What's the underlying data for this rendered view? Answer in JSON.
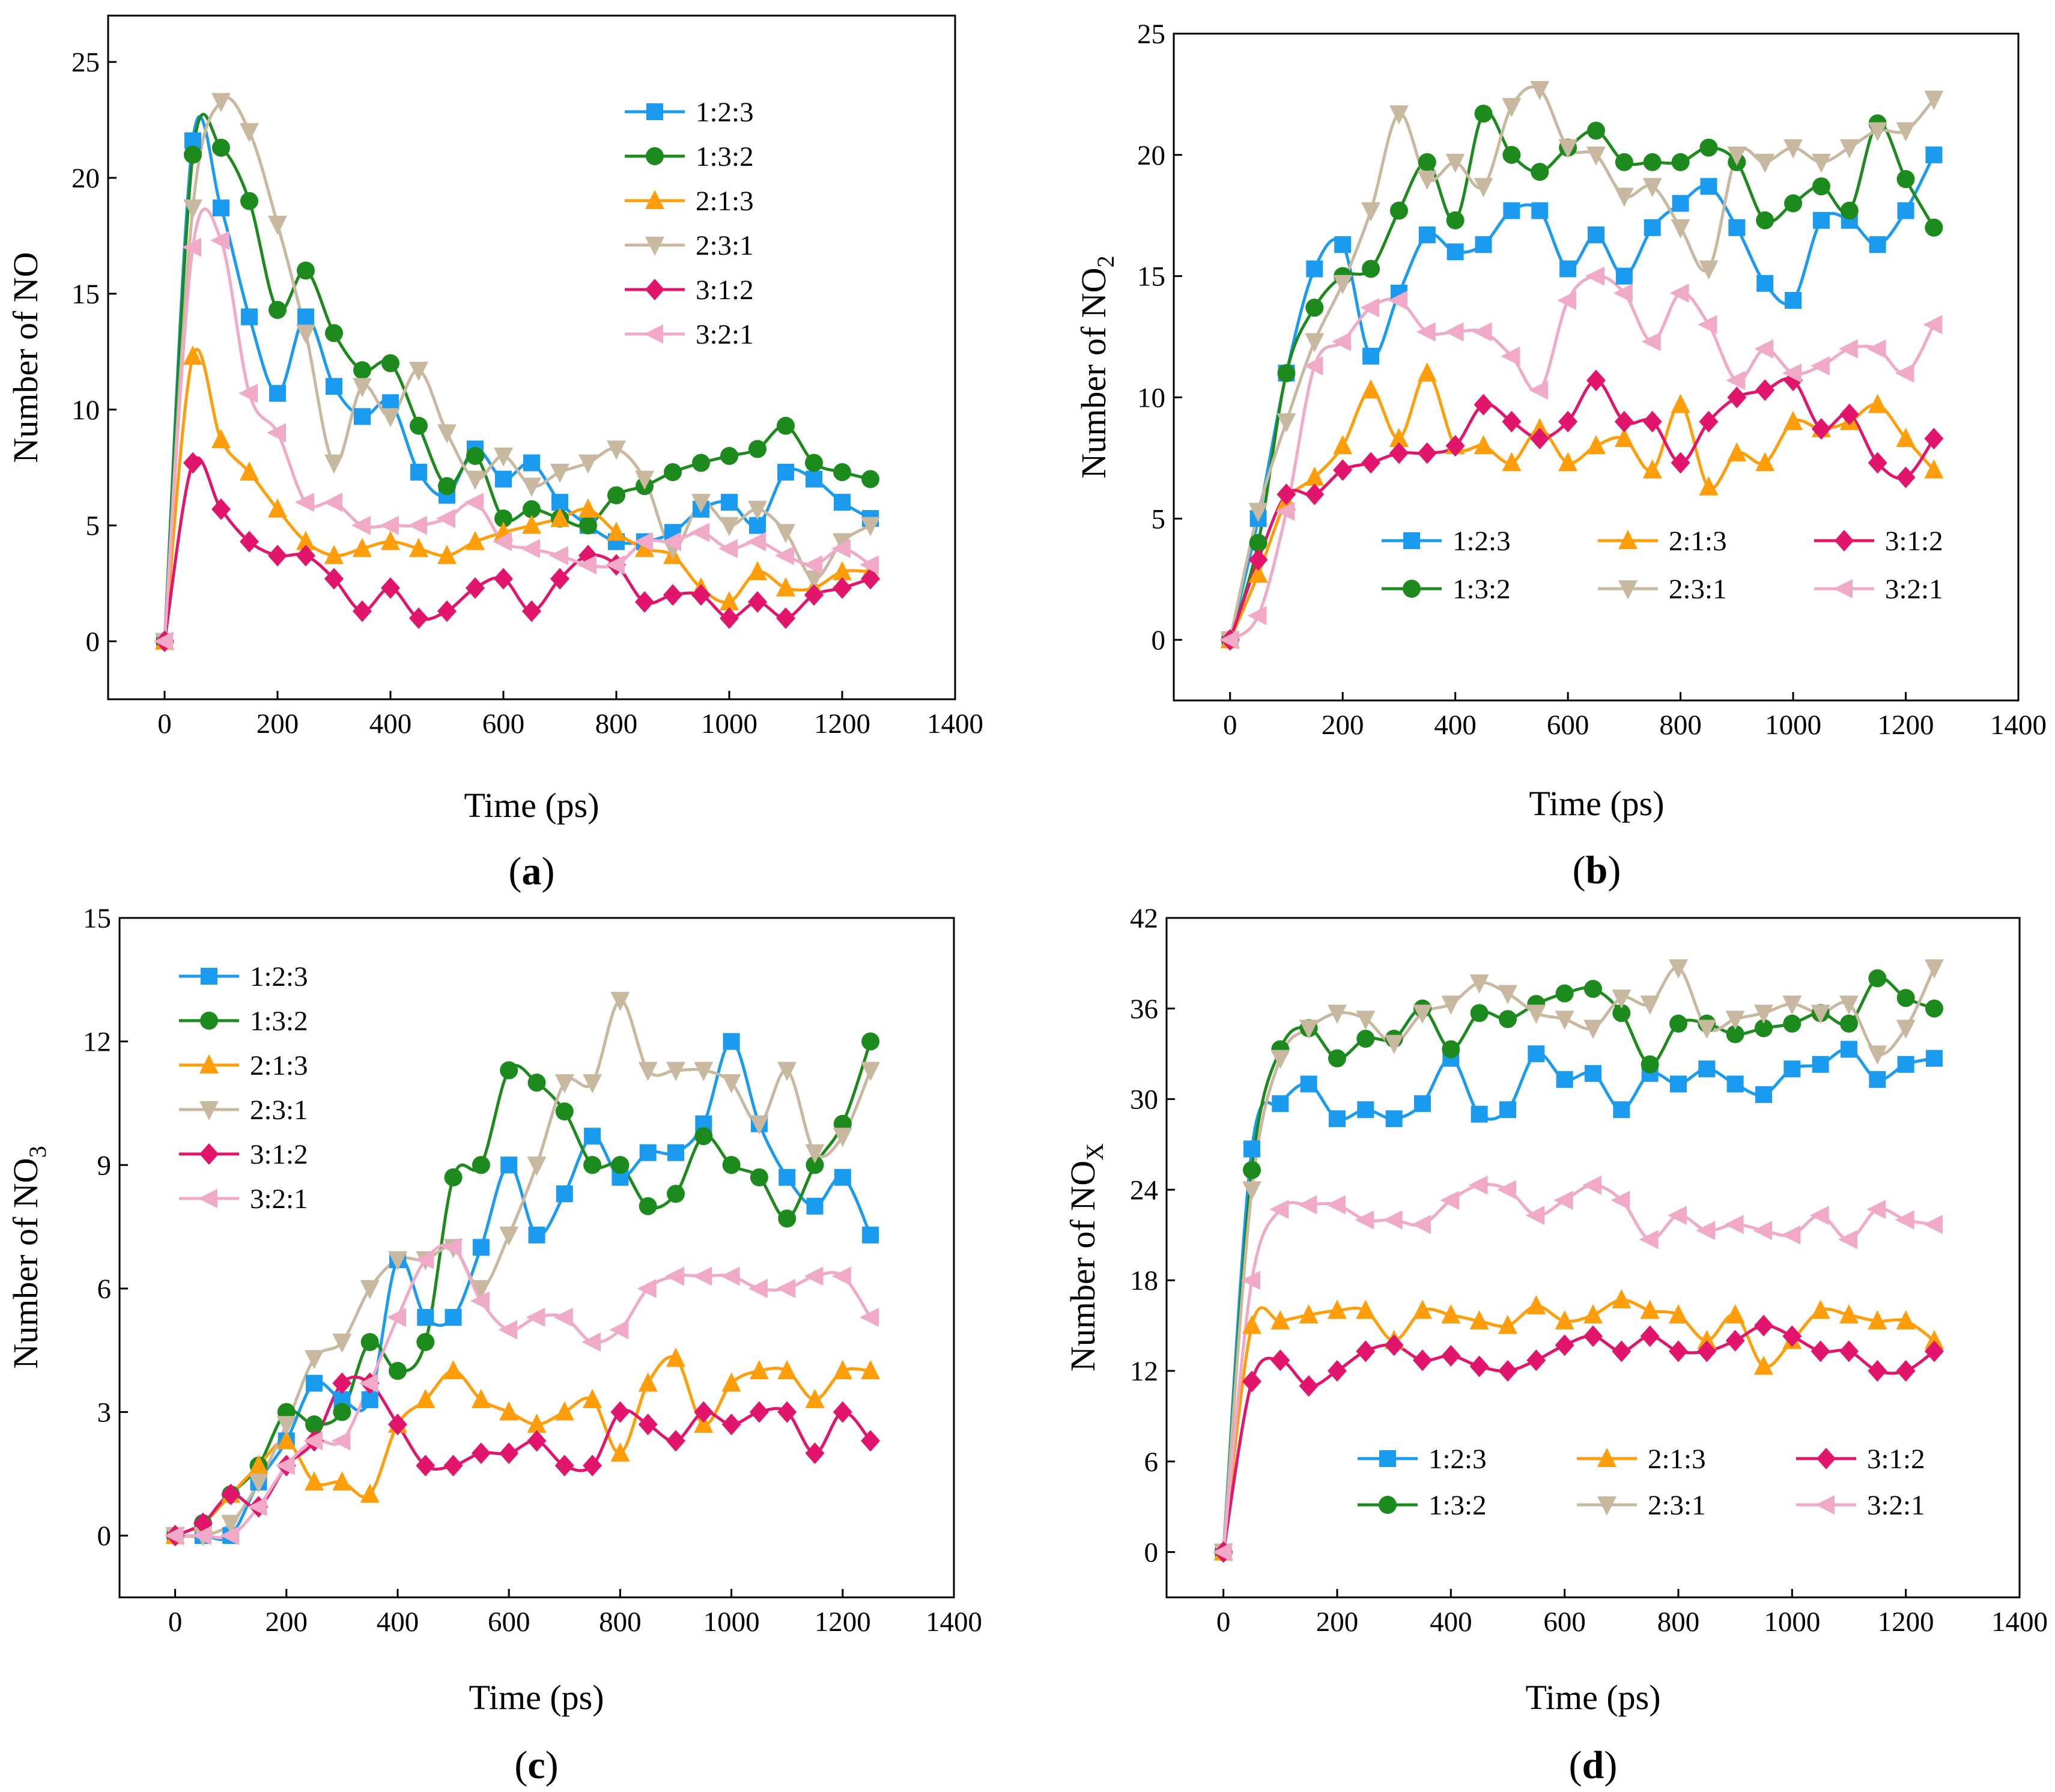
{
  "colors": {
    "1:2:3": "#1a9bf0",
    "1:3:2": "#1d8a1d",
    "2:1:3": "#ff9d0a",
    "2:3:1": "#c9b8a0",
    "3:1:2": "#e0156b",
    "3:2:1": "#f0aac8"
  },
  "chart_data": [
    {
      "type": "line",
      "panel_label": "(a)",
      "label_open": "(",
      "label_letter": "a",
      "label_close": ")",
      "xlabel": "Time (ps)",
      "ylabel": "Number of NO",
      "ylabel_sub": "",
      "xlim": [
        -100,
        1400
      ],
      "ylim": [
        -2.5,
        27
      ],
      "xticks": [
        0,
        200,
        400,
        600,
        800,
        1000,
        1200,
        1400
      ],
      "yticks": [
        0,
        5,
        10,
        15,
        20,
        25
      ],
      "legend": "top-right-column",
      "x": [
        0,
        50,
        100,
        150,
        200,
        250,
        300,
        350,
        400,
        450,
        500,
        550,
        600,
        650,
        700,
        750,
        800,
        850,
        900,
        950,
        1000,
        1050,
        1100,
        1150,
        1200,
        1250
      ],
      "series": [
        {
          "name": "1:2:3",
          "marker": "square",
          "values": [
            0,
            21.6,
            18.7,
            14,
            10.7,
            14,
            11,
            9.7,
            10.3,
            7.3,
            6.3,
            8.3,
            7,
            7.7,
            6,
            5,
            4.3,
            4.3,
            4.7,
            5.7,
            6,
            5,
            7.3,
            7,
            6,
            5.3
          ]
        },
        {
          "name": "1:3:2",
          "marker": "circle",
          "values": [
            0,
            21,
            21.3,
            19,
            14.3,
            16,
            13.3,
            11.7,
            12,
            9.3,
            6.7,
            8,
            5.3,
            5.7,
            5.3,
            5,
            6.3,
            6.7,
            7.3,
            7.7,
            8,
            8.3,
            9.3,
            7.7,
            7.3,
            7
          ]
        },
        {
          "name": "2:1:3",
          "marker": "triangle-up",
          "values": [
            0,
            12.3,
            8.7,
            7.3,
            5.7,
            4.3,
            3.7,
            4,
            4.3,
            4,
            3.7,
            4.3,
            4.7,
            5,
            5.3,
            5.7,
            4.7,
            4,
            3.7,
            2.3,
            1.7,
            3,
            2.3,
            2.3,
            3,
            3
          ]
        },
        {
          "name": "2:3:1",
          "marker": "triangle-down",
          "values": [
            0,
            18.7,
            23.3,
            22,
            18,
            13.3,
            7.7,
            11,
            9.7,
            11.7,
            9,
            7,
            8,
            6.7,
            7.3,
            7.7,
            8.3,
            7,
            4,
            6,
            5,
            5.7,
            4.7,
            2.7,
            4.3,
            5
          ]
        },
        {
          "name": "3:1:2",
          "marker": "diamond",
          "values": [
            0,
            7.7,
            5.7,
            4.3,
            3.7,
            3.7,
            2.7,
            1.3,
            2.3,
            1,
            1.3,
            2.3,
            2.7,
            1.3,
            2.7,
            3.7,
            3.3,
            1.7,
            2,
            2,
            1,
            1.7,
            1,
            2,
            2.3,
            2.7
          ]
        },
        {
          "name": "3:2:1",
          "marker": "triangle-left",
          "values": [
            0,
            17,
            17.3,
            10.7,
            9,
            6,
            6,
            5,
            5,
            5,
            5.3,
            6,
            4.3,
            4,
            3.7,
            3.3,
            3.3,
            4.3,
            4.3,
            4.7,
            4,
            4.3,
            3.7,
            3.3,
            4,
            3.3
          ]
        }
      ]
    },
    {
      "type": "line",
      "panel_label": "(b)",
      "label_open": "(",
      "label_letter": "b",
      "label_close": ")",
      "xlabel": "Time (ps)",
      "ylabel": "Number of NO",
      "ylabel_sub": "2",
      "xlim": [
        -100,
        1400
      ],
      "ylim": [
        -2.5,
        25
      ],
      "xticks": [
        0,
        200,
        400,
        600,
        800,
        1000,
        1200,
        1400
      ],
      "yticks": [
        0,
        5,
        10,
        15,
        20,
        25
      ],
      "legend": "bottom-right-grid",
      "x": [
        0,
        50,
        100,
        150,
        200,
        250,
        300,
        350,
        400,
        450,
        500,
        550,
        600,
        650,
        700,
        750,
        800,
        850,
        900,
        950,
        1000,
        1050,
        1100,
        1150,
        1200,
        1250
      ],
      "series": [
        {
          "name": "1:2:3",
          "marker": "square",
          "values": [
            0,
            5,
            11,
            15.3,
            16.3,
            11.7,
            14.3,
            16.7,
            16,
            16.3,
            17.7,
            17.7,
            15.3,
            16.7,
            15,
            17,
            18,
            18.7,
            17,
            14.7,
            14,
            17.3,
            17.3,
            16.3,
            17.7,
            20
          ]
        },
        {
          "name": "1:3:2",
          "marker": "circle",
          "values": [
            0,
            4,
            11,
            13.7,
            15,
            15.3,
            17.7,
            19.7,
            17.3,
            21.7,
            20,
            19.3,
            20.3,
            21,
            19.7,
            19.7,
            19.7,
            20.3,
            19.7,
            17.3,
            18,
            18.7,
            17.7,
            21.3,
            19,
            17
          ]
        },
        {
          "name": "2:1:3",
          "marker": "triangle-up",
          "values": [
            0,
            2.7,
            5.7,
            6.7,
            8,
            10.3,
            8.3,
            11,
            8,
            8,
            7.3,
            8.7,
            7.3,
            8,
            8.3,
            7,
            9.7,
            6.3,
            7.7,
            7.3,
            9,
            8.7,
            9,
            9.7,
            8.3,
            7
          ]
        },
        {
          "name": "2:3:1",
          "marker": "triangle-down",
          "values": [
            0,
            5.3,
            9,
            12.3,
            14.7,
            17.7,
            21.7,
            19,
            19.7,
            18.7,
            22,
            22.7,
            20.3,
            20,
            18.3,
            18.7,
            17,
            15.3,
            20,
            19.7,
            20.3,
            19.7,
            20.3,
            21,
            21,
            22.3
          ]
        },
        {
          "name": "3:1:2",
          "marker": "diamond",
          "values": [
            0,
            3.3,
            6,
            6,
            7,
            7.3,
            7.7,
            7.7,
            8,
            9.7,
            9,
            8.3,
            9,
            10.7,
            9,
            9,
            7.3,
            9,
            10,
            10.3,
            10.7,
            8.7,
            9.3,
            7.3,
            6.7,
            8.3
          ]
        },
        {
          "name": "3:2:1",
          "marker": "triangle-left",
          "values": [
            0,
            1,
            5.3,
            11.3,
            12.3,
            13.7,
            14,
            12.7,
            12.7,
            12.7,
            11.7,
            10.3,
            14,
            15,
            14.3,
            12.3,
            14.3,
            13,
            10.7,
            12,
            11,
            11.3,
            12,
            12,
            11,
            13
          ]
        }
      ]
    },
    {
      "type": "line",
      "panel_label": "(c)",
      "label_open": "(",
      "label_letter": "c",
      "label_close": ")",
      "xlabel": "Time (ps)",
      "ylabel": "Number of NO",
      "ylabel_sub": "3",
      "xlim": [
        -100,
        1400
      ],
      "ylim": [
        -1.5,
        15
      ],
      "xticks": [
        0,
        200,
        400,
        600,
        800,
        1000,
        1200,
        1400
      ],
      "yticks": [
        0,
        3,
        6,
        9,
        12,
        15
      ],
      "legend": "top-left-column",
      "x": [
        0,
        50,
        100,
        150,
        200,
        250,
        300,
        350,
        400,
        450,
        500,
        550,
        600,
        650,
        700,
        750,
        800,
        850,
        900,
        950,
        1000,
        1050,
        1100,
        1150,
        1200,
        1250
      ],
      "series": [
        {
          "name": "1:2:3",
          "marker": "square",
          "values": [
            0,
            0,
            0,
            1.3,
            2.3,
            3.7,
            3.3,
            3.3,
            6.7,
            5.3,
            5.3,
            7,
            9,
            7.3,
            8.3,
            9.7,
            8.7,
            9.3,
            9.3,
            10,
            12,
            10,
            8.7,
            8,
            8.7,
            7.3
          ]
        },
        {
          "name": "1:3:2",
          "marker": "circle",
          "values": [
            0,
            0.3,
            1,
            1.7,
            3,
            2.7,
            3,
            4.7,
            4,
            4.7,
            8.7,
            9,
            11.3,
            11,
            10.3,
            9,
            9,
            8,
            8.3,
            9.7,
            9,
            8.7,
            7.7,
            9,
            10,
            12
          ]
        },
        {
          "name": "2:1:3",
          "marker": "triangle-up",
          "values": [
            0,
            0.3,
            1,
            1.7,
            2.3,
            1.3,
            1.3,
            1,
            2.7,
            3.3,
            4,
            3.3,
            3,
            2.7,
            3,
            3.3,
            2,
            3.7,
            4.3,
            2.7,
            3.7,
            4,
            4,
            3.3,
            4,
            4
          ]
        },
        {
          "name": "2:3:1",
          "marker": "triangle-down",
          "values": [
            0,
            0,
            0.3,
            1.3,
            2.7,
            4.3,
            4.7,
            6,
            6.7,
            6.7,
            7,
            6,
            7.3,
            9,
            11,
            11,
            13,
            11.3,
            11.3,
            11.3,
            11,
            10,
            11.3,
            9.3,
            9.7,
            11.3
          ]
        },
        {
          "name": "3:1:2",
          "marker": "diamond",
          "values": [
            0,
            0.3,
            1,
            0.7,
            1.7,
            2.3,
            3.7,
            3.7,
            2.7,
            1.7,
            1.7,
            2,
            2,
            2.3,
            1.7,
            1.7,
            3,
            2.7,
            2.3,
            3,
            2.7,
            3,
            3,
            2,
            3,
            2.3
          ]
        },
        {
          "name": "3:2:1",
          "marker": "triangle-left",
          "values": [
            0,
            0,
            0,
            0.7,
            1.7,
            2.3,
            2.3,
            3.7,
            5.3,
            6.7,
            7,
            5.7,
            5,
            5.3,
            5.3,
            4.7,
            5,
            6,
            6.3,
            6.3,
            6.3,
            6,
            6,
            6.3,
            6.3,
            5.3
          ]
        }
      ]
    },
    {
      "type": "line",
      "panel_label": "(d)",
      "label_open": "(",
      "label_letter": "d",
      "label_close": ")",
      "xlabel": "Time (ps)",
      "ylabel": "Number of NO",
      "ylabel_sub": "X",
      "xlim": [
        -100,
        1400
      ],
      "ylim": [
        -3,
        42
      ],
      "xticks": [
        0,
        200,
        400,
        600,
        800,
        1000,
        1200,
        1400
      ],
      "yticks": [
        0,
        6,
        12,
        18,
        24,
        30,
        36,
        42
      ],
      "legend": "bottom-right-grid",
      "x": [
        0,
        50,
        100,
        150,
        200,
        250,
        300,
        350,
        400,
        450,
        500,
        550,
        600,
        650,
        700,
        750,
        800,
        850,
        900,
        950,
        1000,
        1050,
        1100,
        1150,
        1200,
        1250
      ],
      "series": [
        {
          "name": "1:2:3",
          "marker": "square",
          "values": [
            0,
            26.7,
            29.7,
            31,
            28.7,
            29.3,
            28.7,
            29.7,
            32.7,
            29,
            29.3,
            33,
            31.3,
            31.7,
            29.3,
            31.7,
            31,
            32,
            31,
            30.3,
            32,
            32.3,
            33.3,
            31.3,
            32.3,
            32.7
          ]
        },
        {
          "name": "1:3:2",
          "marker": "circle",
          "values": [
            0,
            25.3,
            33.3,
            34.7,
            32.7,
            34,
            34,
            36,
            33.3,
            35.7,
            35.3,
            36.3,
            37,
            37.3,
            35.7,
            32.3,
            35,
            35,
            34.3,
            34.7,
            35,
            35.7,
            35,
            38,
            36.7,
            36
          ]
        },
        {
          "name": "2:1:3",
          "marker": "triangle-up",
          "values": [
            0,
            15,
            15.3,
            15.7,
            16,
            16,
            14,
            16,
            15.7,
            15.3,
            15,
            16.3,
            15.3,
            15.7,
            16.7,
            16,
            15.7,
            14,
            15.7,
            12.3,
            14,
            16,
            15.7,
            15.3,
            15.3,
            14
          ]
        },
        {
          "name": "2:3:1",
          "marker": "triangle-down",
          "values": [
            0,
            24,
            32.7,
            34.7,
            35.7,
            35.3,
            33.7,
            35.7,
            36.3,
            37.7,
            37,
            35.7,
            35.3,
            34.7,
            36.7,
            36.3,
            38.7,
            34.7,
            35.3,
            35.7,
            36.3,
            35.7,
            36.3,
            33,
            34.7,
            38.7
          ]
        },
        {
          "name": "3:1:2",
          "marker": "diamond",
          "values": [
            0,
            11.3,
            12.7,
            11,
            12,
            13.3,
            13.7,
            12.7,
            13,
            12.3,
            12,
            12.7,
            13.7,
            14.3,
            13.3,
            14.3,
            13.3,
            13.3,
            14,
            15,
            14.3,
            13.3,
            13.3,
            12,
            12,
            13.3
          ]
        },
        {
          "name": "3:2:1",
          "marker": "triangle-left",
          "values": [
            0,
            18,
            22.7,
            23,
            23,
            22,
            22,
            21.7,
            23.3,
            24.3,
            24,
            22.3,
            23.3,
            24.3,
            23.3,
            20.7,
            22.3,
            21.3,
            21.7,
            21.3,
            21,
            22.3,
            20.7,
            22.7,
            22,
            21.7
          ]
        }
      ]
    }
  ]
}
